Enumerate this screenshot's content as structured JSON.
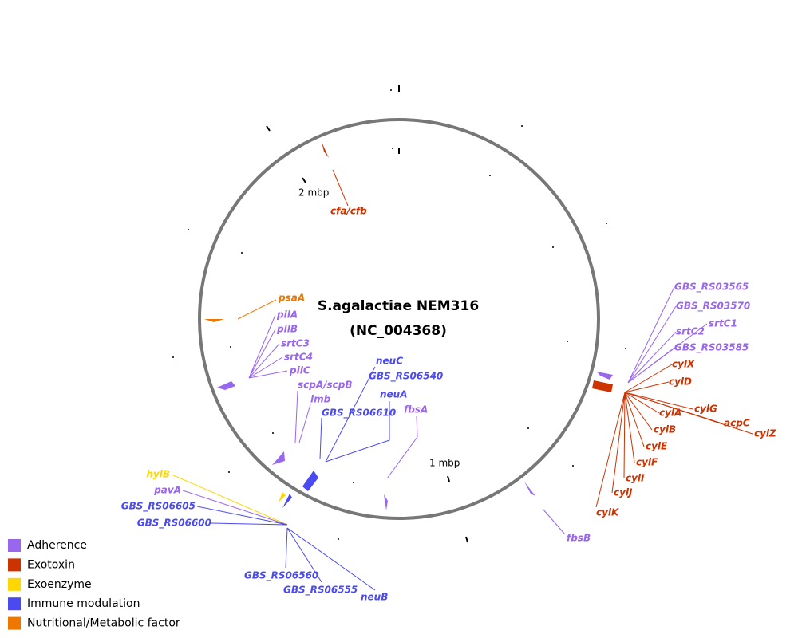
{
  "title": [
    "S.agalactiae NEM316",
    "(NC_004368)"
  ],
  "scale_labels": [
    "2 mbp",
    "1 mbp"
  ],
  "legend": [
    {
      "label": "Adherence",
      "color": "#9966ee",
      "genes": [
        "GBS_RS03565",
        "GBS_RS03570",
        "srtC1",
        "srtC2",
        "GBS_RS03585",
        "pilA",
        "pilB",
        "srtC3",
        "srtC4",
        "pilC",
        "scpA/scpB",
        "lmb",
        "fbsA",
        "pavA",
        "fbsB"
      ]
    },
    {
      "label": "Exotoxin",
      "color": "#cc3300",
      "genes": [
        "cfa/cfb",
        "cylX",
        "cylD",
        "cylG",
        "cylA",
        "acpC",
        "cylZ",
        "cylB",
        "cylE",
        "cylF",
        "cylI",
        "cylJ",
        "cylK"
      ]
    },
    {
      "label": "Exoenzyme",
      "color": "#ffd700",
      "genes": [
        "hylB"
      ]
    },
    {
      "label": "Immune modulation",
      "color": "#4a4af0",
      "genes": [
        "neuC",
        "GBS_RS06540",
        "neuA",
        "GBS_RS06610",
        "GBS_RS06605",
        "GBS_RS06600",
        "GBS_RS06560",
        "GBS_RS06555",
        "neuB"
      ]
    },
    {
      "label": "Nutritional/Metabolic factor",
      "color": "#ee7700",
      "genes": [
        "psaA"
      ]
    }
  ]
}
